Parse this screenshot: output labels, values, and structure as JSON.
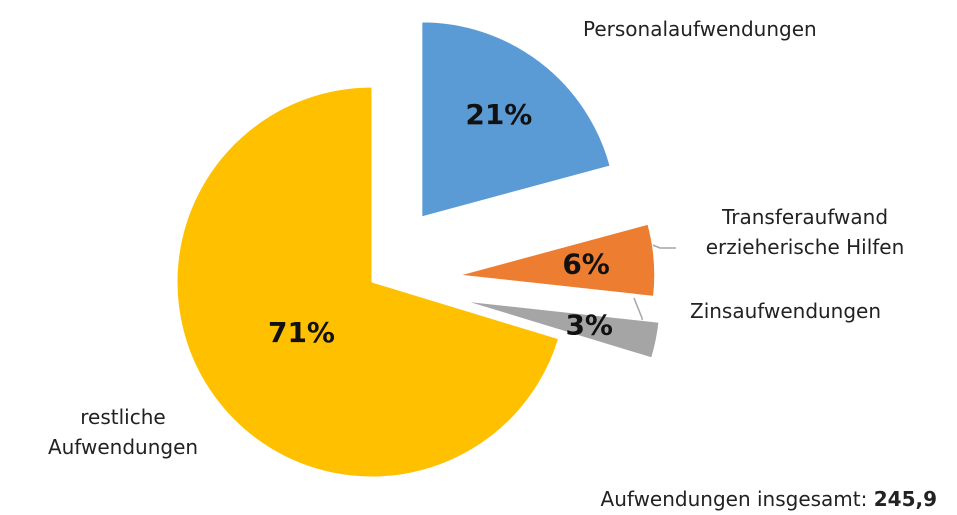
{
  "chart_data": {
    "type": "pie",
    "categories": [
      "Personalaufwendungen",
      "Transferaufwand erzieherische Hilfen",
      "Zinsaufwendungen",
      "restliche Aufwendungen"
    ],
    "values": [
      21,
      6,
      3,
      71
    ],
    "value_labels": [
      "21%",
      "6%",
      "3%",
      "71%"
    ],
    "colors": [
      "#5b9bd5",
      "#ed7d31",
      "#a5a5a5",
      "#ffc000"
    ],
    "note": "Aufwendungen insgesamt:",
    "total": 245.9,
    "total_label": "245,9"
  }
}
